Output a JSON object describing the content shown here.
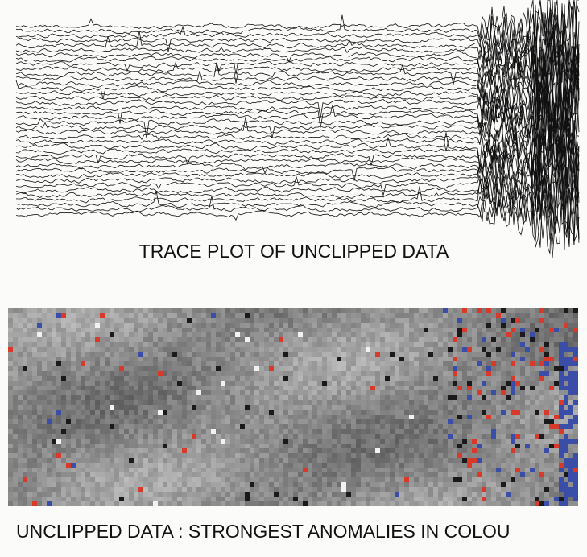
{
  "captions": {
    "trace_plot": "TRACE PLOT OF UNCLIPPED DATA",
    "image_plot": "UNCLIPPED DATA : STRONGEST ANOMALIES IN COLOU"
  }
}
